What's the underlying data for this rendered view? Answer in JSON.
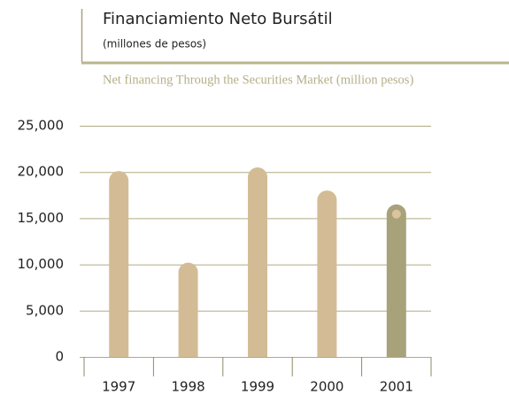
{
  "chart_data": {
    "type": "bar",
    "title": "Financiamiento Neto Bursátil",
    "subtitle": "(millones de pesos)",
    "subtitle_en": "Net financing Through the Securities Market (million pesos)",
    "categories": [
      "1997",
      "1998",
      "1999",
      "2000",
      "2001"
    ],
    "values": [
      20100,
      10200,
      20500,
      18000,
      16500
    ],
    "colors": [
      "#d3bc95",
      "#d3bc95",
      "#d3bc95",
      "#d3bc95",
      "#a7a27a"
    ],
    "ylim": [
      0,
      25000
    ],
    "yticks": [
      0,
      {
        "value": 5000,
        "label": "5,000"
      },
      {
        "value": 10000,
        "label": "10,000"
      },
      {
        "value": 15000,
        "label": "15,000"
      },
      {
        "value": 20000,
        "label": "20,000"
      },
      {
        "value": 25000,
        "label": "25,000"
      }
    ],
    "grid": true
  }
}
